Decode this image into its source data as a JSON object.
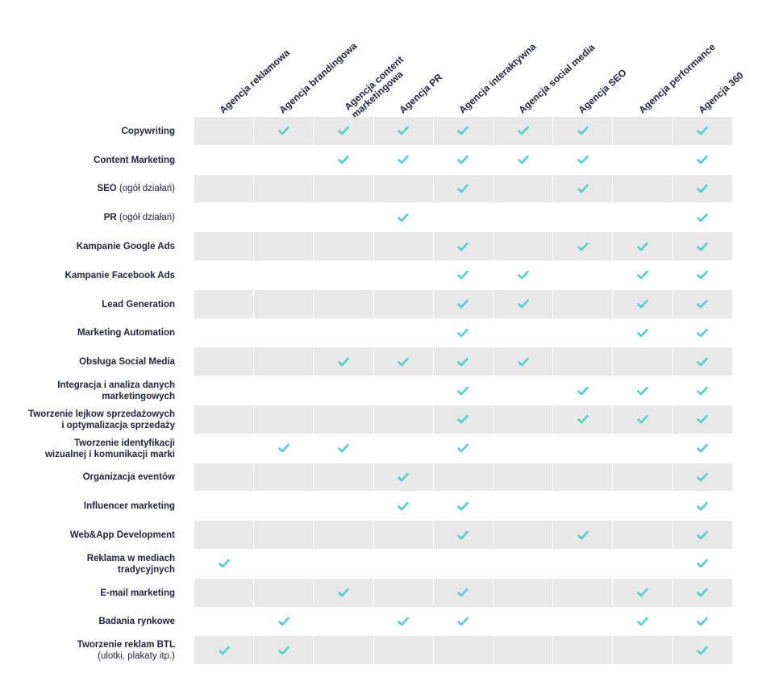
{
  "columns": [
    {
      "label": [
        "Agencja reklamowa"
      ]
    },
    {
      "label": [
        "Agencja brandingowa"
      ]
    },
    {
      "label": [
        "Agencja content",
        "marketingowa"
      ]
    },
    {
      "label": [
        "Agencja PR"
      ]
    },
    {
      "label": [
        "Agencja interaktywna"
      ]
    },
    {
      "label": [
        "Agencja social media"
      ]
    },
    {
      "label": [
        "Agencja SEO"
      ]
    },
    {
      "label": [
        "Agencja performance"
      ]
    },
    {
      "label": [
        "Agencja 360"
      ]
    }
  ],
  "rows": [
    {
      "label": [
        "Copywriting"
      ],
      "note": "",
      "checks": [
        0,
        1,
        1,
        1,
        1,
        1,
        1,
        0,
        1
      ]
    },
    {
      "label": [
        "Content Marketing"
      ],
      "note": "",
      "checks": [
        0,
        0,
        1,
        1,
        1,
        1,
        1,
        0,
        1
      ]
    },
    {
      "label": [
        "SEO"
      ],
      "note": "(ogół działań)",
      "checks": [
        0,
        0,
        0,
        0,
        1,
        0,
        1,
        0,
        1
      ]
    },
    {
      "label": [
        "PR"
      ],
      "note": "(ogół działań)",
      "checks": [
        0,
        0,
        0,
        1,
        0,
        0,
        0,
        0,
        1
      ]
    },
    {
      "label": [
        "Kampanie Google Ads"
      ],
      "note": "",
      "checks": [
        0,
        0,
        0,
        0,
        1,
        0,
        1,
        1,
        1
      ]
    },
    {
      "label": [
        "Kampanie Facebook Ads"
      ],
      "note": "",
      "checks": [
        0,
        0,
        0,
        0,
        1,
        1,
        0,
        1,
        1
      ]
    },
    {
      "label": [
        "Lead Generation"
      ],
      "note": "",
      "checks": [
        0,
        0,
        0,
        0,
        1,
        1,
        0,
        1,
        1
      ]
    },
    {
      "label": [
        "Marketing Automation"
      ],
      "note": "",
      "checks": [
        0,
        0,
        0,
        0,
        1,
        0,
        0,
        1,
        1
      ]
    },
    {
      "label": [
        "Obsługa Social Media"
      ],
      "note": "",
      "checks": [
        0,
        0,
        1,
        1,
        1,
        1,
        0,
        0,
        1
      ]
    },
    {
      "label": [
        "Integracja i analiza danych",
        "marketingowych"
      ],
      "note": "",
      "checks": [
        0,
        0,
        0,
        0,
        1,
        0,
        1,
        1,
        1
      ]
    },
    {
      "label": [
        "Tworzenie lejkow sprzedażowych",
        "i optymalizacja sprzedaży"
      ],
      "note": "",
      "checks": [
        0,
        0,
        0,
        0,
        1,
        0,
        1,
        1,
        1
      ]
    },
    {
      "label": [
        "Tworzenie identyfikacji",
        "wizualnej i komunikacji marki"
      ],
      "note": "",
      "checks": [
        0,
        1,
        1,
        0,
        1,
        0,
        0,
        0,
        1
      ]
    },
    {
      "label": [
        "Organizacja eventów"
      ],
      "note": "",
      "checks": [
        0,
        0,
        0,
        1,
        0,
        0,
        0,
        0,
        1
      ]
    },
    {
      "label": [
        "Influencer marketing"
      ],
      "note": "",
      "checks": [
        0,
        0,
        0,
        1,
        1,
        0,
        0,
        0,
        1
      ]
    },
    {
      "label": [
        "Web&App Development"
      ],
      "note": "",
      "checks": [
        0,
        0,
        0,
        0,
        1,
        0,
        1,
        0,
        1
      ]
    },
    {
      "label": [
        "Reklama w mediach",
        "tradycyjnych"
      ],
      "note": "",
      "checks": [
        1,
        0,
        0,
        0,
        0,
        0,
        0,
        0,
        1
      ]
    },
    {
      "label": [
        "E-mail marketing"
      ],
      "note": "",
      "checks": [
        0,
        0,
        1,
        0,
        1,
        0,
        0,
        1,
        1
      ]
    },
    {
      "label": [
        "Badania rynkowe"
      ],
      "note": "",
      "checks": [
        0,
        1,
        0,
        1,
        1,
        0,
        0,
        1,
        1
      ]
    },
    {
      "label": [
        "Tworzenie reklam BTL"
      ],
      "note": "(ulotki, plakaty itp.)",
      "checks": [
        1,
        1,
        0,
        0,
        0,
        0,
        0,
        0,
        1
      ]
    }
  ],
  "colors": {
    "check": "#4fd1c5",
    "shaded_row": "#e8e8e8",
    "text": "#23243a"
  },
  "icons": {
    "check": "check-icon"
  }
}
